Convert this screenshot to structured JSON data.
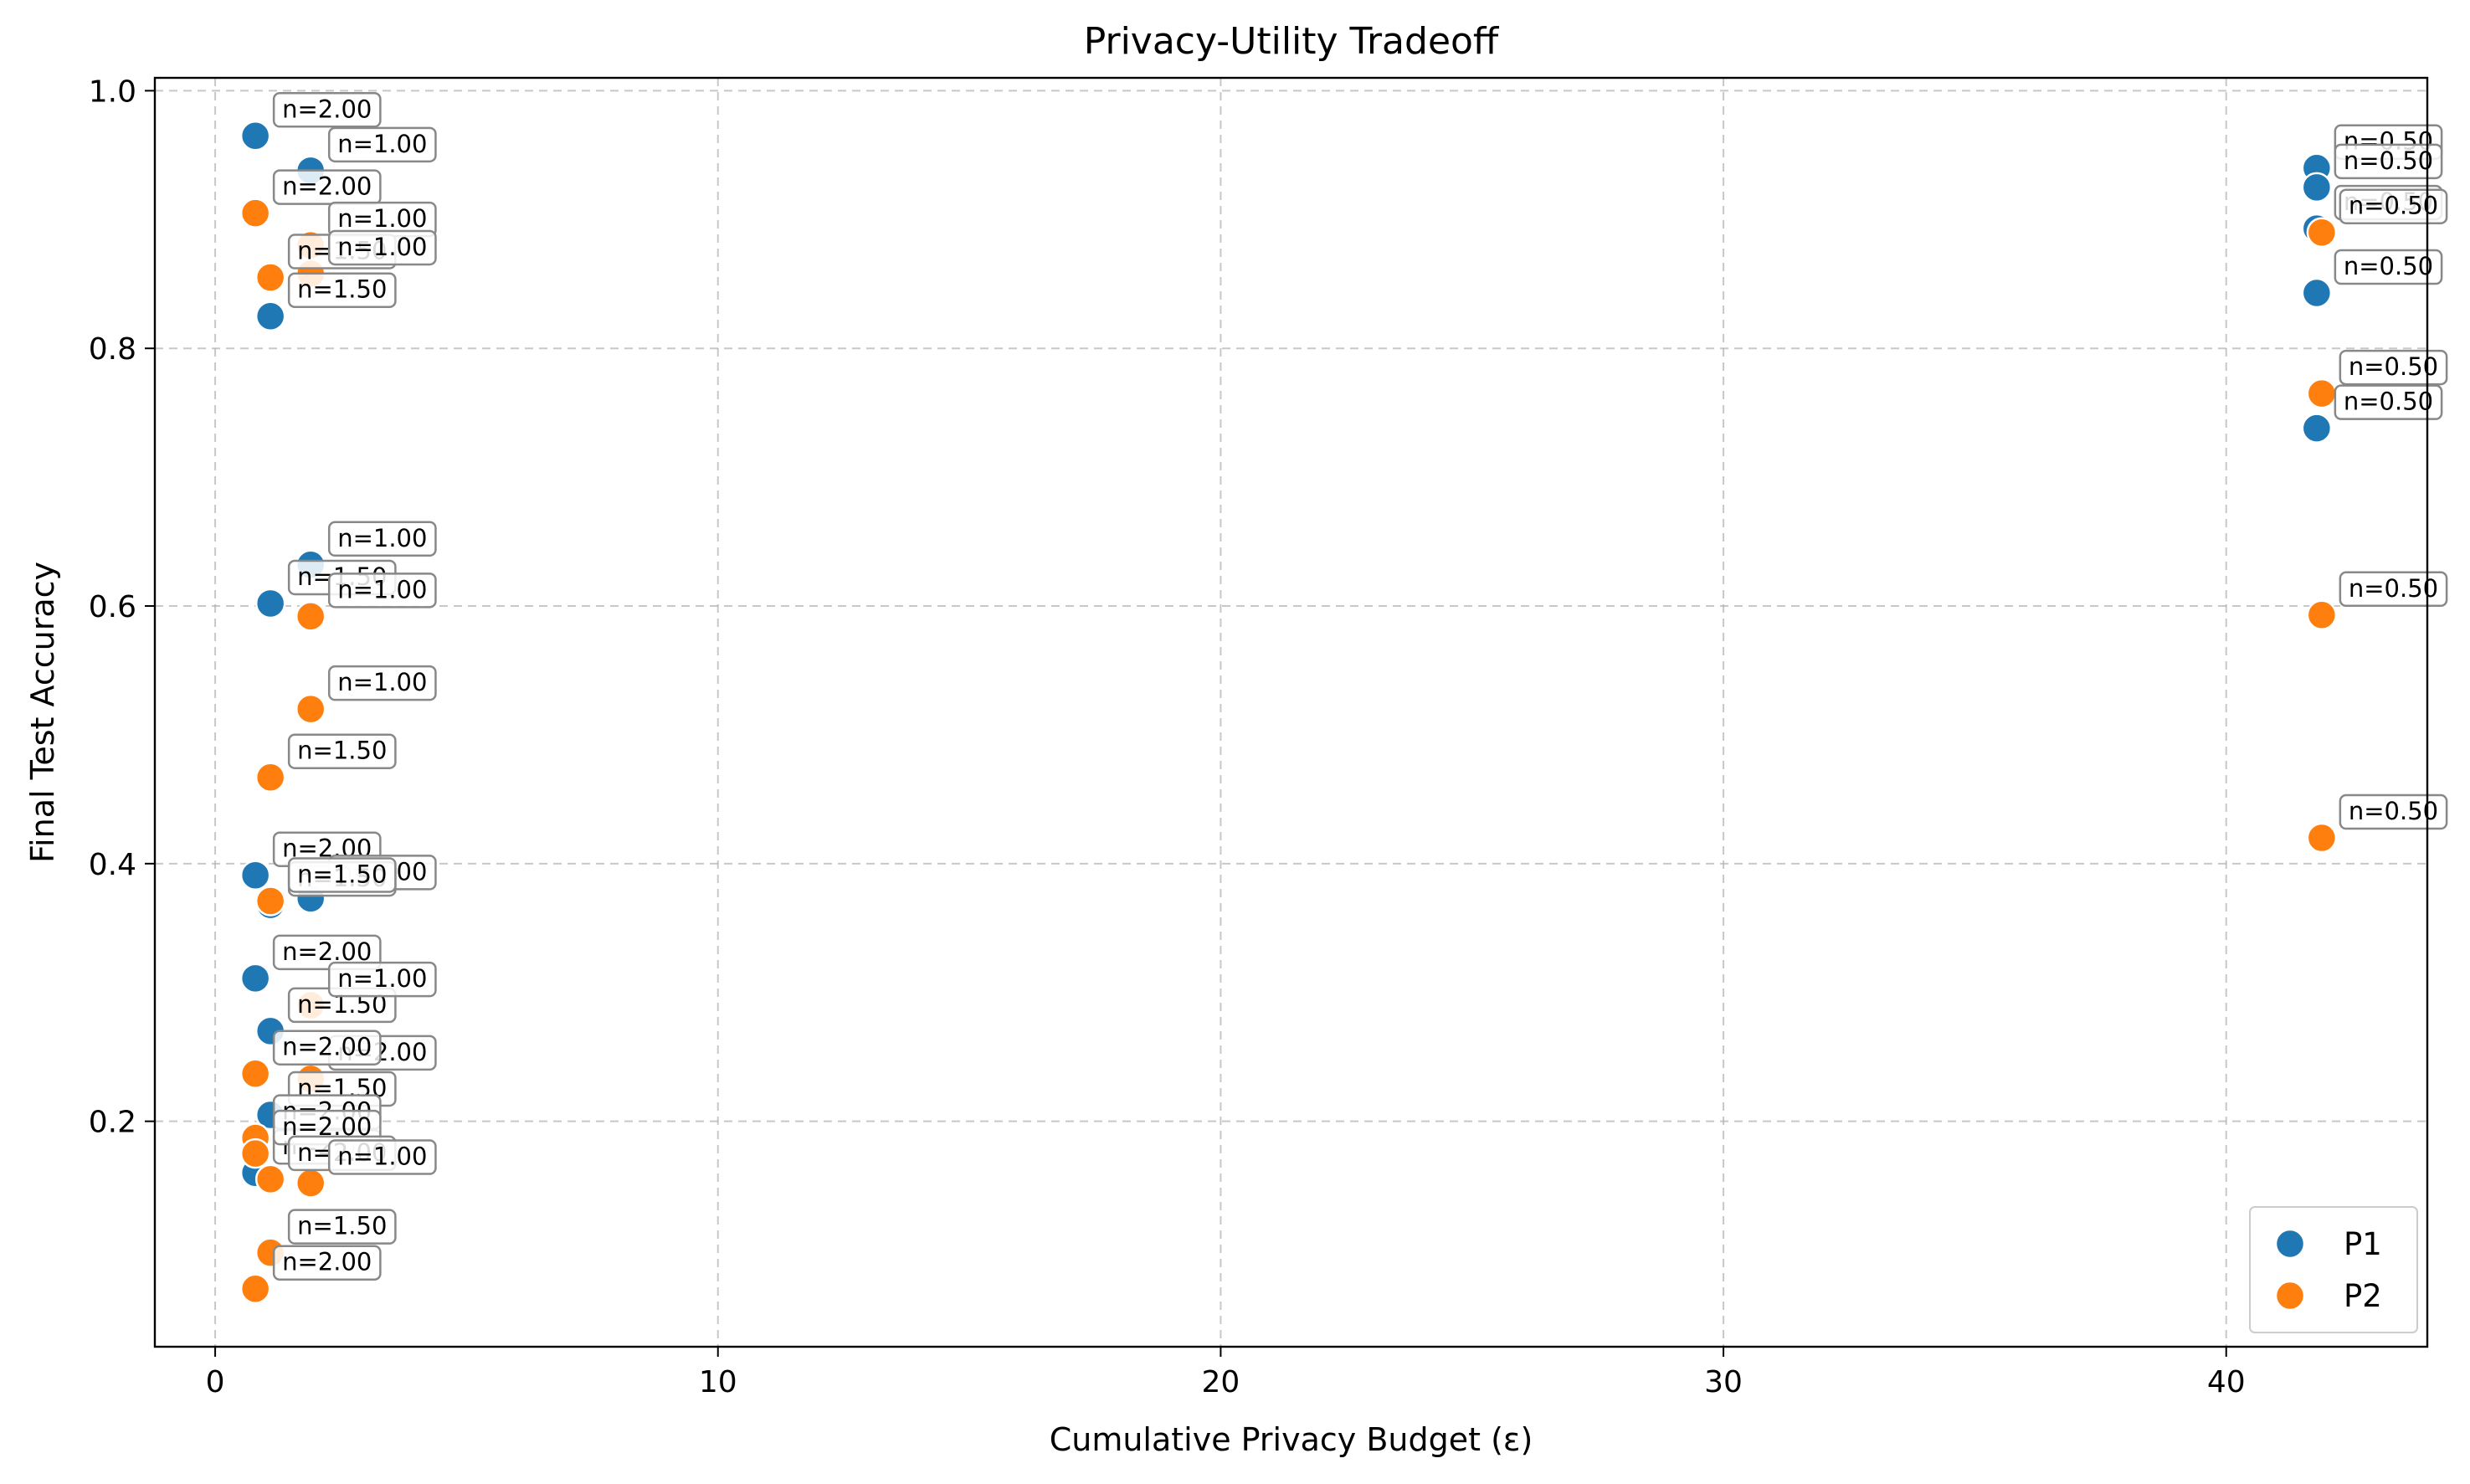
{
  "chart_data": {
    "type": "scatter",
    "title": "Privacy-Utility Tradeoff",
    "xlabel": "Cumulative Privacy Budget (ε)",
    "ylabel": "Final Test Accuracy",
    "xlim": [
      -1.2,
      44
    ],
    "ylim": [
      0.025,
      1.01
    ],
    "xticks": [
      0,
      10,
      20,
      30,
      40
    ],
    "yticks": [
      0.2,
      0.4,
      0.6,
      0.8,
      1.0
    ],
    "xtick_labels": [
      "0",
      "10",
      "20",
      "30",
      "40"
    ],
    "ytick_labels": [
      "0.2",
      "0.4",
      "0.6",
      "0.8",
      "1.0"
    ],
    "grid": true,
    "legend_position": "lower-right",
    "colors": {
      "P1": "#1f77b4",
      "P2": "#ff7f0e"
    },
    "series": [
      {
        "name": "P1",
        "points": [
          {
            "x": 0.8,
            "y": 0.965,
            "label": "n=2.00"
          },
          {
            "x": 1.9,
            "y": 0.938,
            "label": "n=1.00"
          },
          {
            "x": 1.1,
            "y": 0.825,
            "label": "n=1.50"
          },
          {
            "x": 1.9,
            "y": 0.632,
            "label": "n=1.00"
          },
          {
            "x": 1.1,
            "y": 0.602,
            "label": "n=1.50"
          },
          {
            "x": 0.8,
            "y": 0.391,
            "label": "n=2.00"
          },
          {
            "x": 1.9,
            "y": 0.373,
            "label": "n=1.00"
          },
          {
            "x": 1.1,
            "y": 0.368,
            "label": "n=1.50"
          },
          {
            "x": 0.8,
            "y": 0.311,
            "label": "n=2.00"
          },
          {
            "x": 1.1,
            "y": 0.27,
            "label": "n=1.50"
          },
          {
            "x": 1.1,
            "y": 0.205,
            "label": "n=1.50"
          },
          {
            "x": 0.8,
            "y": 0.16,
            "label": "n=2.00"
          },
          {
            "x": 41.8,
            "y": 0.94,
            "label": "n=0.50"
          },
          {
            "x": 41.8,
            "y": 0.925,
            "label": "n=0.50"
          },
          {
            "x": 41.8,
            "y": 0.893,
            "label": "n=0.50"
          },
          {
            "x": 41.8,
            "y": 0.843,
            "label": "n=0.50"
          },
          {
            "x": 41.8,
            "y": 0.738,
            "label": "n=0.50"
          }
        ]
      },
      {
        "name": "P2",
        "points": [
          {
            "x": 0.8,
            "y": 0.905,
            "label": "n=2.00"
          },
          {
            "x": 1.9,
            "y": 0.88,
            "label": "n=1.00"
          },
          {
            "x": 1.1,
            "y": 0.855,
            "label": "n=1.50"
          },
          {
            "x": 1.9,
            "y": 0.858,
            "label": "n=1.00"
          },
          {
            "x": 1.9,
            "y": 0.592,
            "label": "n=1.00"
          },
          {
            "x": 1.9,
            "y": 0.52,
            "label": "n=1.00"
          },
          {
            "x": 1.1,
            "y": 0.467,
            "label": "n=1.50"
          },
          {
            "x": 1.1,
            "y": 0.371,
            "label": "n=1.50"
          },
          {
            "x": 1.9,
            "y": 0.29,
            "label": "n=1.00"
          },
          {
            "x": 1.9,
            "y": 0.233,
            "label": "n=2.00"
          },
          {
            "x": 0.8,
            "y": 0.237,
            "label": "n=2.00"
          },
          {
            "x": 0.8,
            "y": 0.187,
            "label": "n=2.00"
          },
          {
            "x": 0.8,
            "y": 0.175,
            "label": "n=2.00"
          },
          {
            "x": 1.1,
            "y": 0.155,
            "label": "n=2.00"
          },
          {
            "x": 1.9,
            "y": 0.152,
            "label": "n=1.00"
          },
          {
            "x": 1.1,
            "y": 0.098,
            "label": "n=1.50"
          },
          {
            "x": 0.8,
            "y": 0.07,
            "label": "n=2.00"
          },
          {
            "x": 41.9,
            "y": 0.89,
            "label": "n=0.50"
          },
          {
            "x": 41.9,
            "y": 0.765,
            "label": "n=0.50"
          },
          {
            "x": 41.9,
            "y": 0.593,
            "label": "n=0.50"
          },
          {
            "x": 41.9,
            "y": 0.42,
            "label": "n=0.50"
          }
        ]
      }
    ]
  }
}
